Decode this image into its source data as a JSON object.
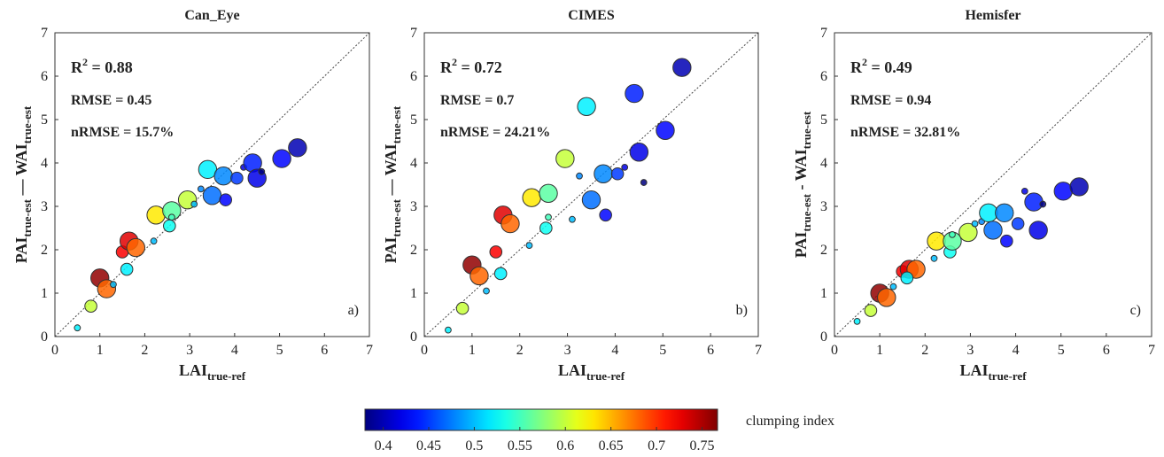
{
  "chart_data": [
    {
      "type": "scatter",
      "title": "Can_Eye",
      "xlabel": {
        "text": "LAI",
        "sub": "true-ref"
      },
      "ylabel": {
        "text": "PAI",
        "sub": "true-est",
        "text2": " — WAI",
        "sub2": "true-est"
      },
      "annotations": [
        {
          "text": "R",
          "sup": "2",
          "rest": " = 0.88"
        },
        "RMSE = 0.45",
        "nRMSE = 15.7%"
      ],
      "panel_label": "a)",
      "xlim": [
        0,
        7
      ],
      "ylim": [
        0,
        7
      ],
      "xticks": [
        0,
        1,
        2,
        3,
        4,
        5,
        6,
        7
      ],
      "yticks": [
        0,
        1,
        2,
        3,
        4,
        5,
        6,
        7
      ],
      "series": [
        {
          "x": [
            0.5,
            0.8,
            1.0,
            1.15,
            1.3,
            1.5,
            1.65,
            1.8,
            1.6,
            2.2,
            2.25,
            2.55,
            2.6,
            2.6,
            2.95,
            3.1,
            3.25,
            3.4,
            3.5,
            3.75,
            3.8,
            4.05,
            4.2,
            4.4,
            4.5,
            4.6,
            5.05,
            5.4
          ],
          "values": [
            0.2,
            0.7,
            1.35,
            1.1,
            1.2,
            1.95,
            2.2,
            2.05,
            1.55,
            2.2,
            2.8,
            2.55,
            2.9,
            2.75,
            3.15,
            3.05,
            3.4,
            3.85,
            3.25,
            3.7,
            3.15,
            3.65,
            3.9,
            4.0,
            3.65,
            3.8,
            4.1,
            4.35
          ],
          "clumping": [
            0.52,
            0.6,
            0.76,
            0.68,
            0.5,
            0.72,
            0.73,
            0.68,
            0.52,
            0.5,
            0.63,
            0.53,
            0.56,
            0.55,
            0.6,
            0.5,
            0.48,
            0.52,
            0.47,
            0.48,
            0.43,
            0.45,
            0.42,
            0.44,
            0.42,
            0.38,
            0.43,
            0.4
          ],
          "sizes": [
            1,
            2,
            3,
            3,
            1,
            2,
            3,
            3,
            2,
            1,
            3,
            2,
            3,
            1,
            3,
            1,
            1,
            3,
            3,
            3,
            2,
            2,
            1,
            3,
            3,
            1,
            3,
            3
          ]
        }
      ]
    },
    {
      "type": "scatter",
      "title": "CIMES",
      "xlabel": {
        "text": "LAI",
        "sub": "true-ref"
      },
      "ylabel": {
        "text": "PAI",
        "sub": "true-est",
        "text2": " — WAI",
        "sub2": "true-est"
      },
      "annotations": [
        {
          "text": "R",
          "sup": "2",
          "rest": " = 0.72"
        },
        "RMSE = 0.7",
        "nRMSE = 24.21%"
      ],
      "panel_label": "b)",
      "xlim": [
        0,
        7
      ],
      "ylim": [
        0,
        7
      ],
      "xticks": [
        0,
        1,
        2,
        3,
        4,
        5,
        6,
        7
      ],
      "yticks": [
        0,
        1,
        2,
        3,
        4,
        5,
        6,
        7
      ],
      "series": [
        {
          "x": [
            0.5,
            0.8,
            1.0,
            1.15,
            1.3,
            1.5,
            1.65,
            1.8,
            1.6,
            2.2,
            2.25,
            2.55,
            2.6,
            2.6,
            2.95,
            3.1,
            3.25,
            3.4,
            3.5,
            3.75,
            3.8,
            4.05,
            4.2,
            4.4,
            4.5,
            4.6,
            5.05,
            5.4
          ],
          "values": [
            0.15,
            0.65,
            1.65,
            1.4,
            1.05,
            1.95,
            2.8,
            2.6,
            1.45,
            2.1,
            3.2,
            2.5,
            3.3,
            2.75,
            4.1,
            2.7,
            3.7,
            5.3,
            3.15,
            3.75,
            2.8,
            3.75,
            3.9,
            5.6,
            4.25,
            3.55,
            4.75,
            6.2
          ],
          "clumping": [
            0.52,
            0.6,
            0.76,
            0.68,
            0.5,
            0.72,
            0.73,
            0.68,
            0.52,
            0.5,
            0.63,
            0.53,
            0.56,
            0.55,
            0.6,
            0.5,
            0.48,
            0.52,
            0.47,
            0.48,
            0.43,
            0.45,
            0.42,
            0.44,
            0.42,
            0.38,
            0.43,
            0.4
          ],
          "sizes": [
            1,
            2,
            3,
            3,
            1,
            2,
            3,
            3,
            2,
            1,
            3,
            2,
            3,
            1,
            3,
            1,
            1,
            3,
            3,
            3,
            2,
            2,
            1,
            3,
            3,
            1,
            3,
            3
          ]
        }
      ]
    },
    {
      "type": "scatter",
      "title": "Hemisfer",
      "xlabel": {
        "text": "LAI",
        "sub": "true-ref"
      },
      "ylabel": {
        "text": "PAI",
        "sub": "true-est",
        "text2": " - WAI",
        "sub2": "true-est"
      },
      "annotations": [
        {
          "text": "R",
          "sup": "2",
          "rest": " = 0.49"
        },
        "RMSE = 0.94",
        "nRMSE = 32.81%"
      ],
      "panel_label": "c)",
      "xlim": [
        0,
        7
      ],
      "ylim": [
        0,
        7
      ],
      "xticks": [
        0,
        1,
        2,
        3,
        4,
        5,
        6,
        7
      ],
      "yticks": [
        0,
        1,
        2,
        3,
        4,
        5,
        6,
        7
      ],
      "series": [
        {
          "x": [
            0.5,
            0.8,
            1.0,
            1.15,
            1.3,
            1.5,
            1.65,
            1.8,
            1.6,
            2.2,
            2.25,
            2.55,
            2.6,
            2.6,
            2.95,
            3.1,
            3.25,
            3.4,
            3.5,
            3.75,
            3.8,
            4.05,
            4.2,
            4.4,
            4.5,
            4.6,
            5.05,
            5.4
          ],
          "values": [
            0.35,
            0.6,
            1.0,
            0.9,
            1.15,
            1.5,
            1.55,
            1.55,
            1.35,
            1.8,
            2.2,
            1.95,
            2.2,
            2.35,
            2.4,
            2.6,
            2.65,
            2.85,
            2.45,
            2.85,
            2.2,
            2.6,
            3.35,
            3.1,
            2.45,
            3.05,
            3.35,
            3.45
          ],
          "clumping": [
            0.52,
            0.6,
            0.76,
            0.68,
            0.5,
            0.72,
            0.73,
            0.68,
            0.52,
            0.5,
            0.63,
            0.53,
            0.56,
            0.55,
            0.6,
            0.5,
            0.48,
            0.52,
            0.47,
            0.48,
            0.43,
            0.45,
            0.42,
            0.44,
            0.42,
            0.38,
            0.43,
            0.4
          ],
          "sizes": [
            1,
            2,
            3,
            3,
            1,
            2,
            3,
            3,
            2,
            1,
            3,
            2,
            3,
            1,
            3,
            1,
            1,
            3,
            3,
            3,
            2,
            2,
            1,
            3,
            3,
            1,
            3,
            3
          ]
        }
      ]
    }
  ],
  "colorbar": {
    "label": "clumping index",
    "clim": [
      0.38,
      0.767
    ],
    "ticks": [
      0.4,
      0.45,
      0.5,
      0.55,
      0.6,
      0.65,
      0.7,
      0.75
    ],
    "colormap": "jet"
  }
}
